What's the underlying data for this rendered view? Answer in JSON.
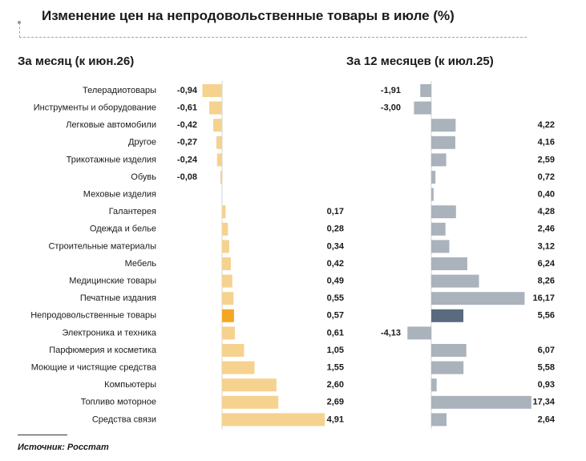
{
  "title": "Изменение цен на непродовольственные товары в июле (%)",
  "source": "Источник: Росстат",
  "colors": {
    "left_bar": "#f5d28e",
    "left_highlight": "#f5a623",
    "right_bar": "#aab2bb",
    "right_highlight": "#5a6a80",
    "axis": "#cfd4da"
  },
  "chart_data": [
    {
      "type": "bar",
      "orientation": "horizontal",
      "title": "За месяц (к июн.26)",
      "categories": [
        "Телерадиотовары",
        "Инструменты и оборудование",
        "Легковые автомобили",
        "Другое",
        "Трикотажные изделия",
        "Обувь",
        "Меховые изделия",
        "Галантерея",
        "Одежда и белье",
        "Строительные материалы",
        "Мебель",
        "Медицинские товары",
        "Печатные издания",
        "Непродовольственные товары",
        "Электроника и техника",
        "Парфюмерия и косметика",
        "Моющие и чистящие средства",
        "Компьютеры",
        "Топливо моторное",
        "Средства связи"
      ],
      "values": [
        -0.94,
        -0.61,
        -0.42,
        -0.27,
        -0.24,
        -0.08,
        null,
        0.17,
        0.28,
        0.34,
        0.42,
        0.49,
        0.55,
        0.57,
        0.61,
        1.05,
        1.55,
        2.6,
        2.69,
        4.91
      ],
      "labels": [
        "-0,94",
        "-0,61",
        "-0,42",
        "-0,27",
        "-0,24",
        "-0,08",
        "",
        "0,17",
        "0,28",
        "0,34",
        "0,42",
        "0,49",
        "0,55",
        "0,57",
        "0,61",
        "1,05",
        "1,55",
        "2,60",
        "2,69",
        "4,91"
      ],
      "highlight_index": 13
    },
    {
      "type": "bar",
      "orientation": "horizontal",
      "title": "За 12 месяцев (к июл.25)",
      "categories": [
        "Телерадиотовары",
        "Инструменты и оборудование",
        "Легковые автомобили",
        "Другое",
        "Трикотажные изделия",
        "Обувь",
        "Меховые изделия",
        "Галантерея",
        "Одежда и белье",
        "Строительные материалы",
        "Мебель",
        "Медицинские товары",
        "Печатные издания",
        "Непродовольственные товары",
        "Электроника и техника",
        "Парфюмерия и косметика",
        "Моющие и чистящие средства",
        "Компьютеры",
        "Топливо моторное",
        "Средства связи"
      ],
      "values": [
        -1.91,
        -3.0,
        4.22,
        4.16,
        2.59,
        0.72,
        0.4,
        4.28,
        2.46,
        3.12,
        6.24,
        8.26,
        16.17,
        5.56,
        -4.13,
        6.07,
        5.58,
        0.93,
        17.34,
        2.64
      ],
      "labels": [
        "-1,91",
        "-3,00",
        "4,22",
        "4,16",
        "2,59",
        "0,72",
        "0,40",
        "4,28",
        "2,46",
        "3,12",
        "6,24",
        "8,26",
        "16,17",
        "5,56",
        "-4,13",
        "6,07",
        "5,58",
        "0,93",
        "17,34",
        "2,64"
      ],
      "highlight_index": 13
    }
  ]
}
